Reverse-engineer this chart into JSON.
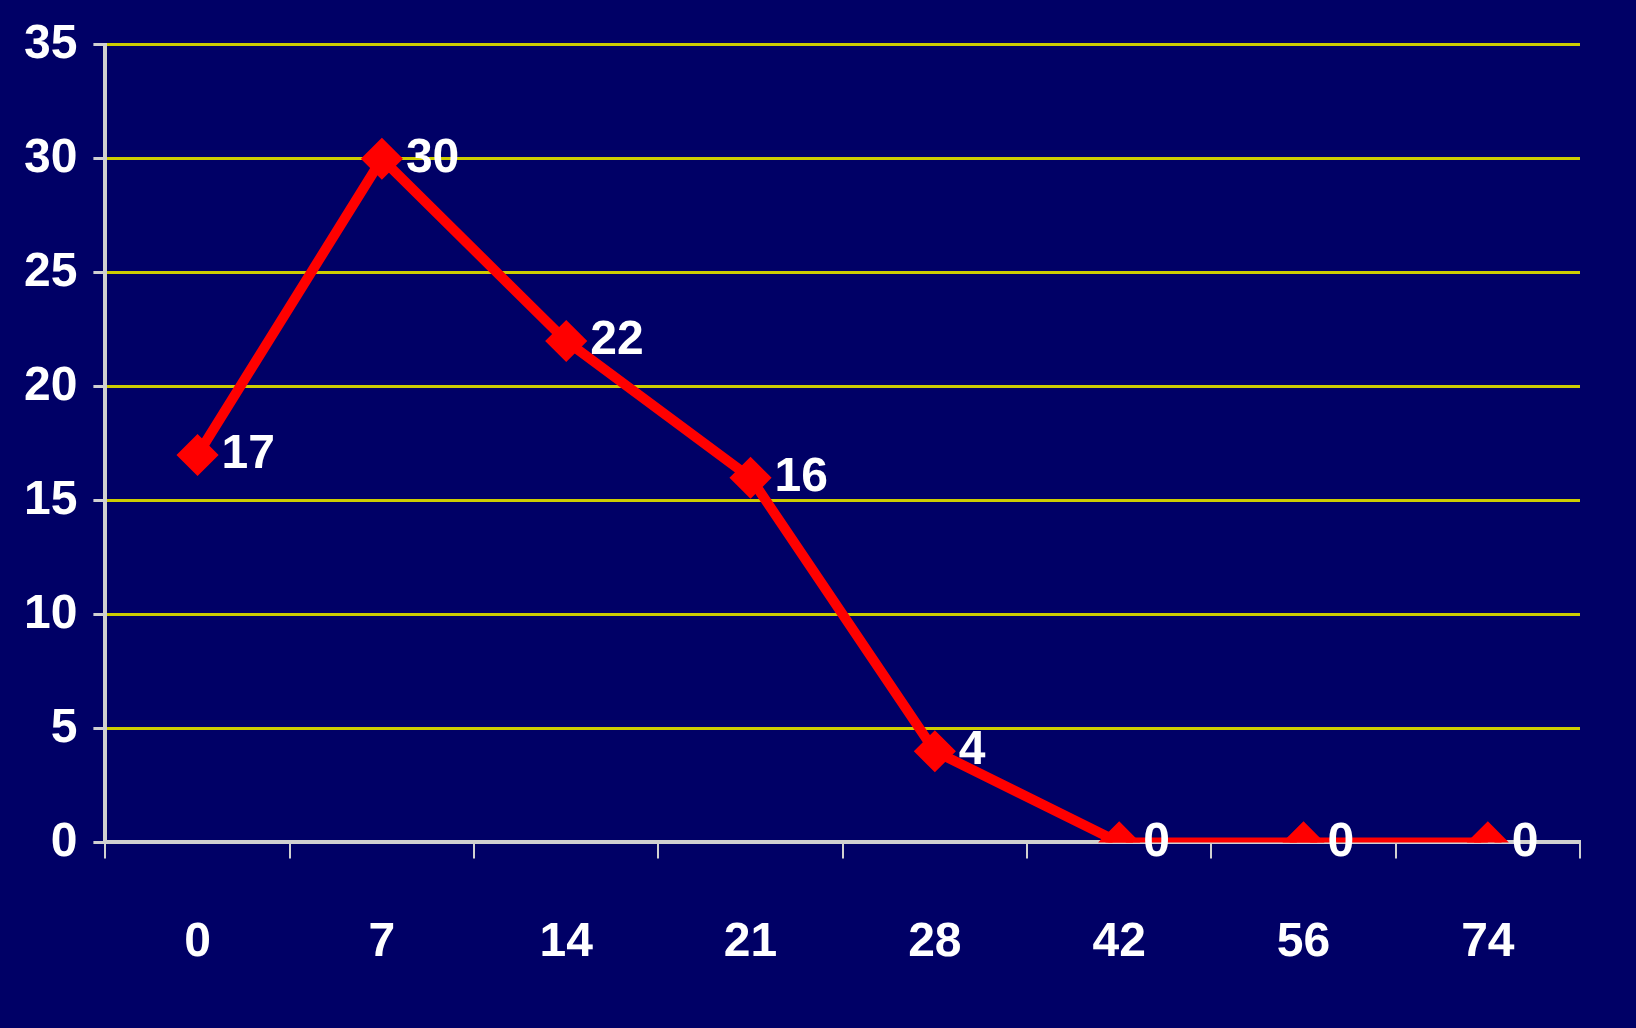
{
  "chart_data": {
    "type": "line",
    "categories": [
      "0",
      "7",
      "14",
      "21",
      "28",
      "42",
      "56",
      "74"
    ],
    "series": [
      {
        "color": "#ff0000",
        "values": [
          17,
          30,
          22,
          16,
          4,
          0,
          0,
          0
        ]
      }
    ],
    "ylim": [
      0,
      35
    ],
    "yticks": [
      0,
      5,
      10,
      15,
      20,
      25,
      30,
      35
    ],
    "grid": "y",
    "legend": false,
    "marker": "diamond",
    "line_style": "solid",
    "data_labels": true
  }
}
